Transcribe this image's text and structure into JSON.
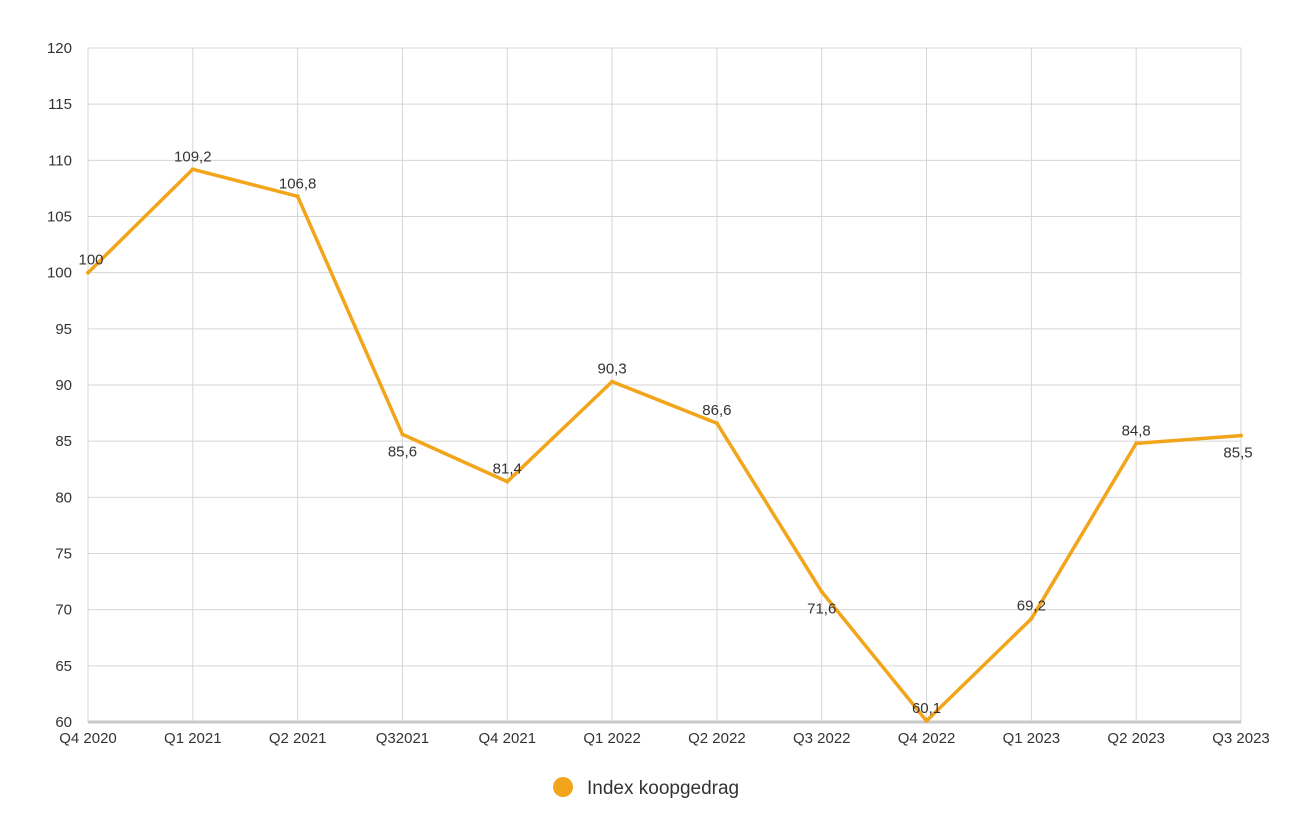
{
  "chart_data": {
    "type": "line",
    "title": "",
    "xlabel": "",
    "ylabel": "",
    "categories": [
      "Q4 2020",
      "Q1 2021",
      "Q2 2021",
      "Q32021",
      "Q4 2021",
      "Q1 2022",
      "Q2 2022",
      "Q3 2022",
      "Q4 2022",
      "Q1 2023",
      "Q2 2023",
      "Q3 2023"
    ],
    "series": [
      {
        "name": "Index koopgedrag",
        "values": [
          100,
          109.2,
          106.8,
          85.6,
          81.4,
          90.3,
          86.6,
          71.6,
          60.1,
          69.2,
          84.8,
          85.5
        ],
        "data_labels": [
          "100",
          "109,2",
          "106,8",
          "85,6",
          "81,4",
          "90,3",
          "86,6",
          "71,6",
          "60,1",
          "69,2",
          "84,8",
          "85,5"
        ],
        "color": "#F2A51A"
      }
    ],
    "ylim": [
      60,
      120
    ],
    "yticks": [
      "60",
      "65",
      "70",
      "75",
      "80",
      "85",
      "90",
      "95",
      "100",
      "105",
      "110",
      "115",
      "120"
    ],
    "grid": true,
    "legend_position": "bottom-center"
  },
  "colors": {
    "series": "#F2A51A",
    "grid": "#d6d6d6",
    "baseline": "#c8c8c8",
    "text": "#333333"
  }
}
